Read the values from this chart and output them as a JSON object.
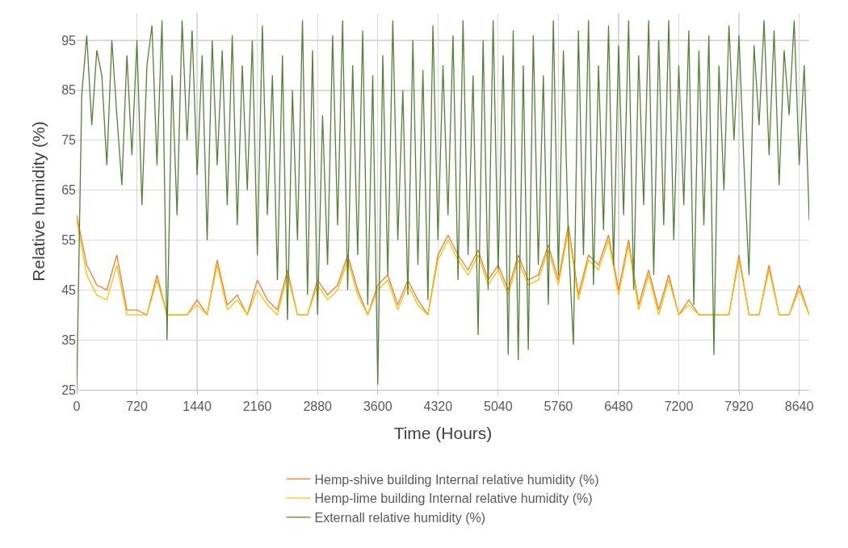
{
  "chart_data": {
    "type": "line",
    "xlabel": "Time (Hours)",
    "ylabel": "Relative humidity (%)",
    "xlim": [
      0,
      8760
    ],
    "xticks": [
      0,
      720,
      1440,
      2160,
      2880,
      3600,
      4320,
      5040,
      5760,
      6480,
      7200,
      7920,
      8640
    ],
    "ylim": [
      25,
      100.5
    ],
    "yticks": [
      25,
      35,
      45,
      55,
      65,
      75,
      85,
      95
    ],
    "grid": true,
    "legend": "bottom",
    "marker": "none",
    "line_style": "solid",
    "series": [
      {
        "name": "Hemp-shive building Internal relative humidity (%)",
        "color": "#ed7d31",
        "x": [
          0,
          120,
          240,
          360,
          480,
          600,
          720,
          840,
          960,
          1080,
          1200,
          1320,
          1440,
          1560,
          1680,
          1800,
          1920,
          2040,
          2160,
          2280,
          2400,
          2520,
          2640,
          2760,
          2880,
          3000,
          3120,
          3240,
          3360,
          3480,
          3600,
          3720,
          3840,
          3960,
          4080,
          4200,
          4320,
          4440,
          4560,
          4680,
          4800,
          4920,
          5040,
          5160,
          5280,
          5400,
          5520,
          5640,
          5760,
          5880,
          6000,
          6120,
          6240,
          6360,
          6480,
          6600,
          6720,
          6840,
          6960,
          7080,
          7200,
          7320,
          7440,
          7560,
          7680,
          7800,
          7920,
          8040,
          8160,
          8280,
          8400,
          8520,
          8640,
          8760
        ],
        "values": [
          60,
          50,
          46,
          45,
          52,
          41,
          41,
          40,
          48,
          40,
          40,
          40,
          43,
          40,
          51,
          42,
          44,
          40,
          47,
          43,
          41,
          49,
          40,
          40,
          47,
          44,
          46,
          52,
          45,
          40,
          46,
          48,
          42,
          47,
          43,
          40,
          52,
          56,
          52,
          49,
          53,
          47,
          50,
          45,
          52,
          47,
          48,
          54,
          47,
          58,
          44,
          52,
          50,
          56,
          45,
          55,
          42,
          49,
          41,
          48,
          40,
          43,
          40,
          40,
          40,
          40,
          52,
          40,
          40,
          50,
          40,
          40,
          46,
          40
        ]
      },
      {
        "name": "Hemp-lime building Internal relative humidity (%)",
        "color": "#ffc000",
        "x": [
          0,
          120,
          240,
          360,
          480,
          600,
          720,
          840,
          960,
          1080,
          1200,
          1320,
          1440,
          1560,
          1680,
          1800,
          1920,
          2040,
          2160,
          2280,
          2400,
          2520,
          2640,
          2760,
          2880,
          3000,
          3120,
          3240,
          3360,
          3480,
          3600,
          3720,
          3840,
          3960,
          4080,
          4200,
          4320,
          4440,
          4560,
          4680,
          4800,
          4920,
          5040,
          5160,
          5280,
          5400,
          5520,
          5640,
          5760,
          5880,
          6000,
          6120,
          6240,
          6360,
          6480,
          6600,
          6720,
          6840,
          6960,
          7080,
          7200,
          7320,
          7440,
          7560,
          7680,
          7800,
          7920,
          8040,
          8160,
          8280,
          8400,
          8520,
          8640,
          8760
        ],
        "values": [
          59,
          48,
          44,
          43,
          50,
          40,
          40,
          40,
          47,
          40,
          40,
          40,
          42,
          40,
          50,
          41,
          43,
          40,
          45,
          42,
          40,
          48,
          40,
          40,
          46,
          43,
          45,
          51,
          44,
          40,
          45,
          47,
          41,
          46,
          42,
          40,
          51,
          55,
          51,
          48,
          52,
          46,
          49,
          44,
          51,
          46,
          47,
          53,
          46,
          57,
          43,
          51,
          49,
          55,
          44,
          54,
          41,
          48,
          40,
          47,
          40,
          42,
          40,
          40,
          40,
          40,
          51,
          40,
          40,
          49,
          40,
          40,
          45,
          40
        ]
      },
      {
        "name": "Externall relative humidity (%)",
        "color": "#548235",
        "x": [
          0,
          60,
          120,
          180,
          240,
          300,
          360,
          420,
          480,
          540,
          600,
          660,
          720,
          780,
          840,
          900,
          960,
          1020,
          1080,
          1140,
          1200,
          1260,
          1320,
          1380,
          1440,
          1500,
          1560,
          1620,
          1680,
          1740,
          1800,
          1860,
          1920,
          1980,
          2040,
          2100,
          2160,
          2220,
          2280,
          2340,
          2400,
          2460,
          2520,
          2580,
          2640,
          2700,
          2760,
          2820,
          2880,
          2940,
          3000,
          3060,
          3120,
          3180,
          3240,
          3300,
          3360,
          3420,
          3480,
          3540,
          3600,
          3660,
          3720,
          3780,
          3840,
          3900,
          3960,
          4020,
          4080,
          4140,
          4200,
          4260,
          4320,
          4380,
          4440,
          4500,
          4560,
          4620,
          4680,
          4740,
          4800,
          4860,
          4920,
          4980,
          5040,
          5100,
          5160,
          5220,
          5280,
          5340,
          5400,
          5460,
          5520,
          5580,
          5640,
          5700,
          5760,
          5820,
          5880,
          5940,
          6000,
          6060,
          6120,
          6180,
          6240,
          6300,
          6360,
          6420,
          6480,
          6540,
          6600,
          6660,
          6720,
          6780,
          6840,
          6900,
          6960,
          7020,
          7080,
          7140,
          7200,
          7260,
          7320,
          7380,
          7440,
          7500,
          7560,
          7620,
          7680,
          7740,
          7800,
          7860,
          7920,
          7980,
          8040,
          8100,
          8160,
          8220,
          8280,
          8340,
          8400,
          8460,
          8520,
          8580,
          8640,
          8700,
          8760
        ],
        "values": [
          25,
          84,
          96,
          78,
          93,
          88,
          70,
          95,
          80,
          66,
          92,
          72,
          95,
          62,
          90,
          98,
          70,
          99,
          35,
          88,
          60,
          99,
          75,
          97,
          68,
          92,
          55,
          95,
          70,
          93,
          62,
          96,
          58,
          90,
          65,
          95,
          52,
          98,
          60,
          88,
          47,
          92,
          39,
          85,
          55,
          99,
          44,
          93,
          40,
          80,
          50,
          96,
          58,
          99,
          45,
          90,
          52,
          97,
          42,
          88,
          26,
          92,
          48,
          99,
          55,
          85,
          44,
          95,
          50,
          89,
          43,
          98,
          55,
          90,
          60,
          96,
          47,
          99,
          52,
          88,
          36,
          95,
          45,
          99,
          49,
          92,
          32,
          97,
          31,
          90,
          33,
          96,
          50,
          88,
          42,
          99,
          48,
          93,
          55,
          34,
          97,
          52,
          99,
          46,
          90,
          57,
          98,
          50,
          94,
          60,
          99,
          45,
          92,
          62,
          99,
          48,
          95,
          58,
          99,
          55,
          90,
          62,
          97,
          42,
          93,
          58,
          96,
          32,
          90,
          65,
          98,
          75,
          96,
          70,
          48,
          94,
          78,
          99,
          72,
          97,
          66,
          93,
          80,
          99,
          70,
          90,
          59
        ]
      }
    ]
  }
}
